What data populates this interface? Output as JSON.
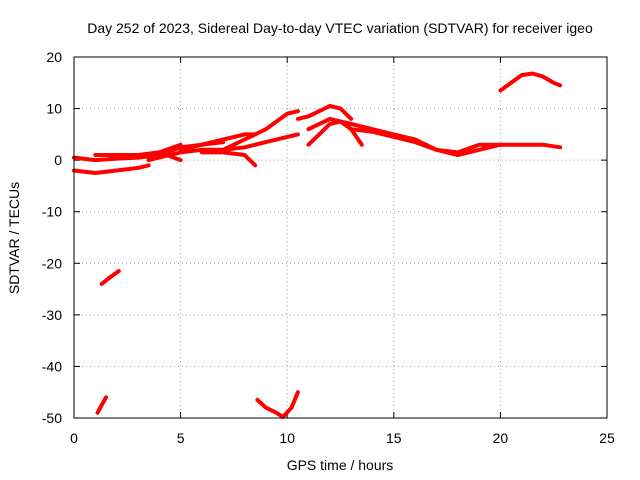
{
  "chart_data": {
    "type": "line",
    "title": "Day 252 of 2023, Sidereal Day-to-day VTEC variation (SDTVAR) for receiver igeo",
    "xlabel": "GPS time / hours",
    "ylabel": "SDTVAR / TECUs",
    "xlim": [
      0,
      25
    ],
    "ylim": [
      -50,
      20
    ],
    "xticks": [
      0,
      5,
      10,
      15,
      20,
      25
    ],
    "yticks": [
      -50,
      -40,
      -30,
      -20,
      -10,
      0,
      10,
      20
    ],
    "xtick_labels": [
      "0",
      "5",
      "10",
      "15",
      "20",
      "25"
    ],
    "ytick_labels": [
      "-50",
      "-40",
      "-30",
      "-20",
      "-10",
      "0",
      "10",
      "20"
    ],
    "grid": true,
    "series_color": "#ff0000",
    "series": [
      {
        "name": "track-1",
        "x": [
          0,
          1,
          2,
          3,
          4,
          5
        ],
        "y": [
          0.5,
          0,
          0.3,
          0.5,
          1.5,
          3
        ]
      },
      {
        "name": "track-2",
        "x": [
          0,
          1,
          2,
          3,
          3.5
        ],
        "y": [
          -2,
          -2.5,
          -2,
          -1.5,
          -1
        ]
      },
      {
        "name": "track-3",
        "x": [
          1,
          2,
          3,
          4,
          5
        ],
        "y": [
          1,
          1,
          1,
          1.5,
          0
        ]
      },
      {
        "name": "track-4",
        "x": [
          3,
          4,
          5,
          6,
          7
        ],
        "y": [
          0.5,
          1,
          2.5,
          3,
          3.5
        ]
      },
      {
        "name": "track-5",
        "x": [
          5,
          6,
          7,
          8,
          8.5
        ],
        "y": [
          2,
          3,
          4,
          5,
          5
        ]
      },
      {
        "name": "track-6",
        "x": [
          6,
          7,
          8,
          8.5
        ],
        "y": [
          1.5,
          1.5,
          1,
          -1
        ]
      },
      {
        "name": "track-7",
        "x": [
          3.5,
          5,
          6,
          7,
          8,
          9,
          10,
          10.5
        ],
        "y": [
          0,
          1.5,
          2,
          2,
          2.5,
          3.5,
          4.5,
          5
        ]
      },
      {
        "name": "track-8",
        "x": [
          7,
          8,
          9,
          9.5,
          10,
          10.5
        ],
        "y": [
          2,
          4,
          6,
          7.5,
          9,
          9.5
        ]
      },
      {
        "name": "track-9",
        "x": [
          10.5,
          11,
          11.5,
          12,
          12.5,
          13
        ],
        "y": [
          8,
          8.5,
          9.5,
          10.5,
          10,
          8
        ]
      },
      {
        "name": "track-10",
        "x": [
          11,
          11.5,
          12,
          12.5,
          13,
          13.5
        ],
        "y": [
          3,
          5,
          7,
          7.5,
          6,
          3
        ]
      },
      {
        "name": "track-11",
        "x": [
          11,
          12,
          13,
          14,
          15,
          16,
          17,
          18,
          19,
          20
        ],
        "y": [
          6,
          8,
          7,
          6,
          5,
          4,
          2,
          1,
          2,
          3
        ]
      },
      {
        "name": "track-12",
        "x": [
          13,
          14,
          15,
          16,
          17,
          18,
          19,
          20,
          21,
          22,
          22.8
        ],
        "y": [
          6,
          5.5,
          4.5,
          3.5,
          2,
          1.5,
          3,
          3,
          3,
          3,
          2.5
        ]
      },
      {
        "name": "track-13",
        "x": [
          20,
          20.5,
          21,
          21.5,
          22,
          22.5,
          22.8
        ],
        "y": [
          13.5,
          15,
          16.5,
          16.8,
          16.2,
          15,
          14.5
        ]
      },
      {
        "name": "track-14",
        "x": [
          1.3,
          1.6,
          2.1
        ],
        "y": [
          -24,
          -23,
          -21.5
        ]
      },
      {
        "name": "track-15",
        "x": [
          1.1,
          1.3,
          1.5
        ],
        "y": [
          -49,
          -47.5,
          -46
        ]
      },
      {
        "name": "track-16",
        "x": [
          8.6,
          9,
          9.5,
          9.8,
          10.2,
          10.5
        ],
        "y": [
          -46.5,
          -48,
          -49,
          -49.8,
          -48,
          -45
        ]
      }
    ]
  }
}
